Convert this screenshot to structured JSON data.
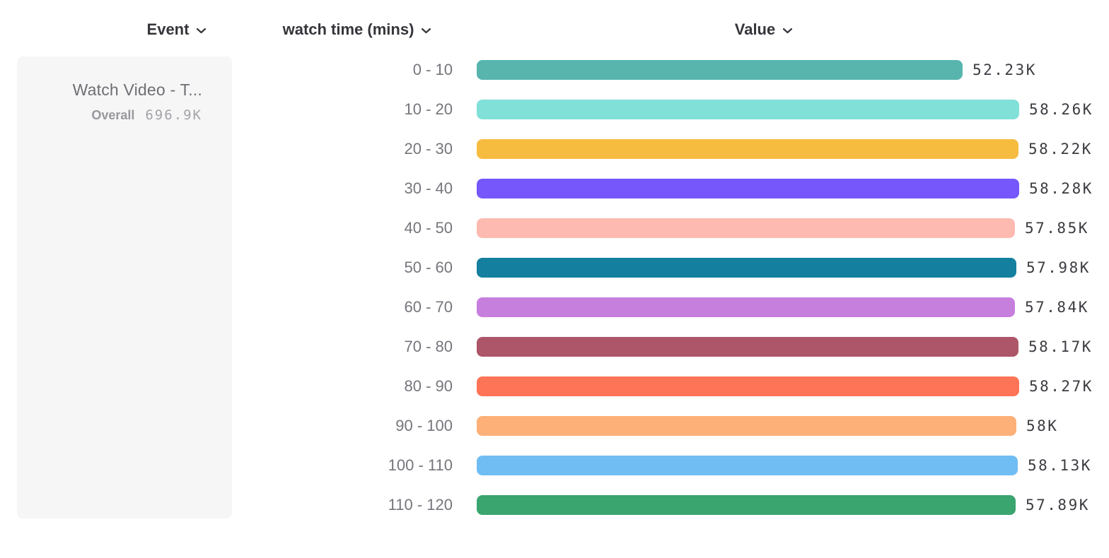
{
  "header": {
    "event_label": "Event",
    "breakdown_label": "watch time (mins)",
    "value_label": "Value"
  },
  "event_card": {
    "title": "Watch Video - T...",
    "overall_label": "Overall",
    "overall_value": "696.9K"
  },
  "chart_data": {
    "type": "bar",
    "orientation": "horizontal",
    "title": "",
    "xlabel": "Value",
    "ylabel": "watch time (mins)",
    "categories": [
      "0 - 10",
      "10 - 20",
      "20 - 30",
      "30 - 40",
      "40 - 50",
      "50 - 60",
      "60 - 70",
      "70 - 80",
      "80 - 90",
      "90 - 100",
      "100 - 110",
      "110 - 120"
    ],
    "values": [
      52230,
      58260,
      58220,
      58280,
      57850,
      57980,
      57840,
      58170,
      58270,
      58000,
      58130,
      57890
    ],
    "display_values": [
      "52.23K",
      "58.26K",
      "58.22K",
      "58.28K",
      "57.85K",
      "57.98K",
      "57.84K",
      "58.17K",
      "58.27K",
      "58K",
      "58.13K",
      "57.89K"
    ],
    "colors": [
      "#57b5ae",
      "#81e0d7",
      "#f6bc40",
      "#7557fb",
      "#fdbab1",
      "#147f9e",
      "#c77fde",
      "#ad5669",
      "#fe7456",
      "#fdb078",
      "#70bdf4",
      "#3ba56f"
    ],
    "xlim": [
      0,
      58280
    ],
    "grid": false,
    "legend": "none"
  }
}
